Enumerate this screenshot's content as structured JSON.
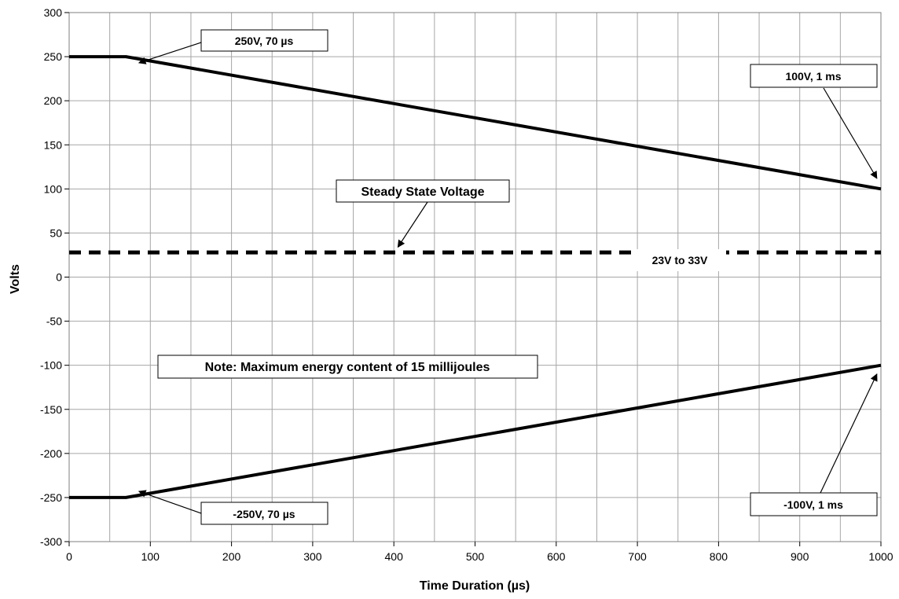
{
  "chart_data": {
    "type": "line",
    "title": "",
    "xlabel": "Time Duration (µs)",
    "ylabel": "Volts",
    "xlim": [
      0,
      1000
    ],
    "ylim": [
      -300,
      300
    ],
    "x_ticks": [
      0,
      100,
      200,
      300,
      400,
      500,
      600,
      700,
      800,
      900,
      1000
    ],
    "y_ticks": [
      300,
      250,
      200,
      150,
      100,
      50,
      0,
      -50,
      -100,
      -150,
      -200,
      -250,
      -300
    ],
    "grid": true,
    "legend": "none",
    "series": [
      {
        "style": "solid",
        "x": [
          0,
          70,
          1000
        ],
        "y": [
          250,
          250,
          100
        ]
      },
      {
        "style": "solid",
        "x": [
          0,
          70,
          1000
        ],
        "y": [
          -250,
          -250,
          -100
        ]
      },
      {
        "style": "dashed",
        "x": [
          0,
          1000
        ],
        "y": [
          28,
          28
        ]
      }
    ],
    "annotations": [
      {
        "text": "250V, 70 µs"
      },
      {
        "text": "100V, 1 ms"
      },
      {
        "text": "Steady State Voltage"
      },
      {
        "text": "23V to 33V"
      },
      {
        "text": "Note: Maximum energy content of 15 millijoules"
      },
      {
        "text": "-250V, 70 µs"
      },
      {
        "text": "-100V, 1 ms"
      }
    ],
    "colors": {
      "line": "#000000",
      "grid": "#a6a6a6",
      "background": "#ffffff"
    }
  }
}
